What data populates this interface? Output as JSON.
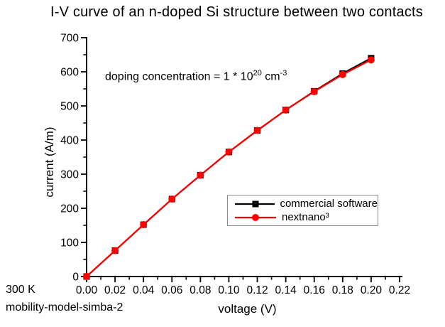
{
  "title": "I-V curve of an n-doped Si structure between two contacts",
  "annotation": {
    "prefix": "doping concentration = 1 * 10",
    "exponent": "20",
    "unit": " cm",
    "unit_exponent": "-3"
  },
  "corner": {
    "temperature": "300 K",
    "model": "mobility-model-simba-2"
  },
  "chart_data": {
    "type": "line",
    "title": "I-V curve of an n-doped Si structure between two contacts",
    "xlabel": "voltage (V)",
    "ylabel": "current (A/m)",
    "xlim": [
      0,
      0.22
    ],
    "ylim": [
      0,
      700
    ],
    "grid": false,
    "x_major_ticks": [
      0,
      0.02,
      0.04,
      0.06,
      0.08,
      0.1,
      0.12,
      0.14,
      0.16,
      0.18,
      0.2,
      0.22
    ],
    "x_tick_labels": [
      "0.00",
      "0.02",
      "0.04",
      "0.06",
      "0.08",
      "0.10",
      "0.12",
      "0.14",
      "0.16",
      "0.18",
      "0.20",
      "0.22"
    ],
    "x_minor_step": 0.01,
    "y_major_ticks": [
      0,
      100,
      200,
      300,
      400,
      500,
      600,
      700
    ],
    "y_tick_labels": [
      "0",
      "100",
      "200",
      "300",
      "400",
      "500",
      "600",
      "700"
    ],
    "y_minor_step": 50,
    "x": [
      0.0,
      0.02,
      0.04,
      0.06,
      0.08,
      0.1,
      0.12,
      0.14,
      0.16,
      0.18,
      0.2
    ],
    "series": [
      {
        "name": "commercial software",
        "color": "#000000",
        "marker": "square",
        "values": [
          0,
          76,
          152,
          227,
          297,
          365,
          428,
          488,
          543,
          595,
          640
        ]
      },
      {
        "name": "nextnano³",
        "color": "#ff0000",
        "marker": "circle",
        "values": [
          0,
          76,
          152,
          227,
          297,
          365,
          428,
          488,
          542,
          592,
          635
        ]
      }
    ],
    "legend": {
      "position": "inside lower-right",
      "border": true
    }
  }
}
